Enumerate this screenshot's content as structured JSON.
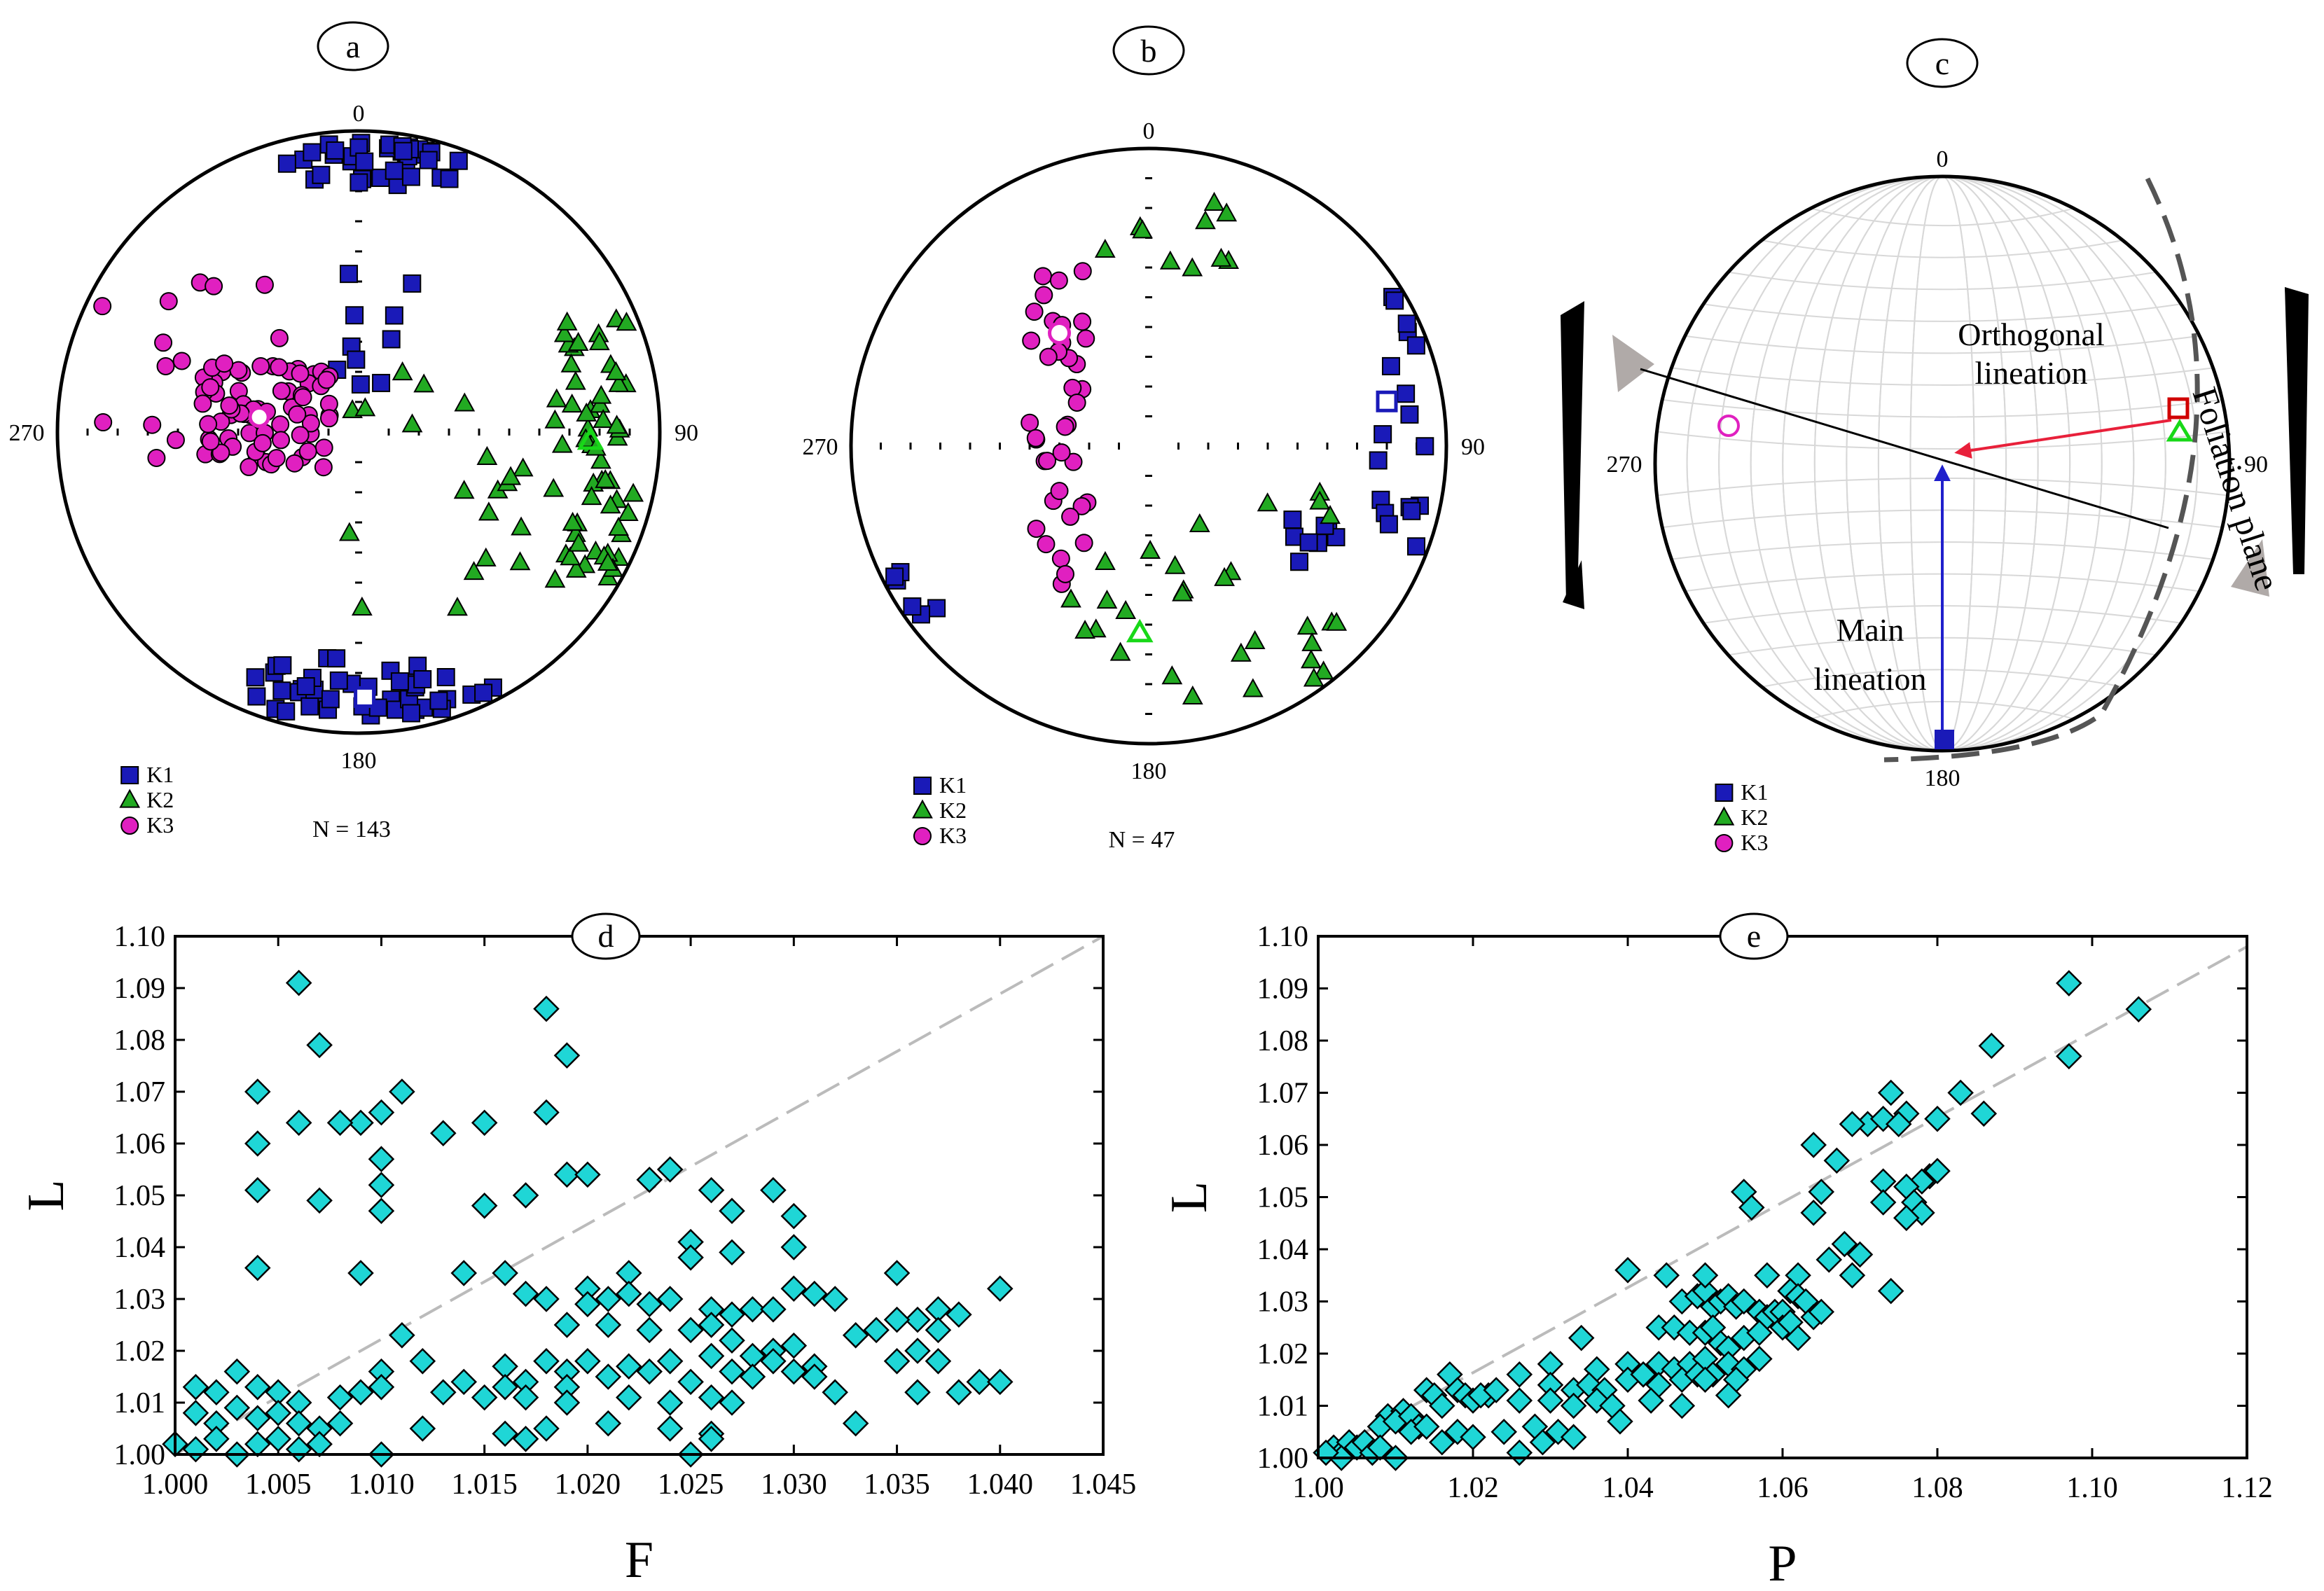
{
  "panels": [
    {
      "id": "a",
      "label": "a",
      "n_text": "N = 143",
      "dirs": [
        "0",
        "90",
        "180",
        "270"
      ]
    },
    {
      "id": "b",
      "label": "b",
      "n_text": "N = 47",
      "dirs": [
        "0",
        "90",
        "180",
        "270"
      ]
    },
    {
      "id": "c",
      "label": "c",
      "dirs": [
        "0",
        "90",
        "180",
        "270"
      ],
      "annotations": {
        "orthogonal": [
          "Orthogonal",
          "lineation"
        ],
        "main": [
          "Main",
          "lineation"
        ],
        "foliation": "Foliation plane"
      }
    }
  ],
  "legend": [
    {
      "key": "K1",
      "shape": "square",
      "color": "#1a1ab8"
    },
    {
      "key": "K2",
      "shape": "triangle",
      "color": "#22aa22"
    },
    {
      "key": "K3",
      "shape": "circle",
      "color": "#e020c0"
    }
  ],
  "colors": {
    "k1": "#1a1ab8",
    "k2": "#22aa22",
    "k3": "#e020c0",
    "scatter": "#1fd6d6",
    "orthogonal": "#e8203a",
    "main": "#2020cc",
    "foliation": "#555555"
  },
  "chart_data": [
    {
      "id": "d",
      "type": "scatter",
      "label": "d",
      "xlabel": "F",
      "ylabel": "L",
      "xlim": [
        1.0,
        1.045
      ],
      "ylim": [
        1.0,
        1.1
      ],
      "xticks": [
        "1.000",
        "1.005",
        "1.010",
        "1.015",
        "1.020",
        "1.025",
        "1.030",
        "1.035",
        "1.040",
        "1.045"
      ],
      "yticks": [
        "1.00",
        "1.01",
        "1.02",
        "1.03",
        "1.04",
        "1.05",
        "1.06",
        "1.07",
        "1.08",
        "1.09",
        "1.10"
      ],
      "reference_line": [
        [
          1.0,
          1.0
        ],
        [
          1.045,
          1.1
        ]
      ],
      "points": [
        [
          1.006,
          1.091
        ],
        [
          1.018,
          1.086
        ],
        [
          1.007,
          1.079
        ],
        [
          1.019,
          1.077
        ],
        [
          1.004,
          1.07
        ],
        [
          1.011,
          1.07
        ],
        [
          1.018,
          1.066
        ],
        [
          1.01,
          1.066
        ],
        [
          1.009,
          1.064
        ],
        [
          1.006,
          1.064
        ],
        [
          1.008,
          1.064
        ],
        [
          1.015,
          1.064
        ],
        [
          1.013,
          1.062
        ],
        [
          1.004,
          1.06
        ],
        [
          1.01,
          1.057
        ],
        [
          1.019,
          1.054
        ],
        [
          1.02,
          1.054
        ],
        [
          1.024,
          1.055
        ],
        [
          1.023,
          1.053
        ],
        [
          1.004,
          1.051
        ],
        [
          1.01,
          1.052
        ],
        [
          1.015,
          1.048
        ],
        [
          1.017,
          1.05
        ],
        [
          1.007,
          1.049
        ],
        [
          1.01,
          1.047
        ],
        [
          1.026,
          1.051
        ],
        [
          1.029,
          1.051
        ],
        [
          1.027,
          1.047
        ],
        [
          1.03,
          1.046
        ],
        [
          1.004,
          1.036
        ],
        [
          1.009,
          1.035
        ],
        [
          1.014,
          1.035
        ],
        [
          1.016,
          1.035
        ],
        [
          1.022,
          1.035
        ],
        [
          1.025,
          1.041
        ],
        [
          1.025,
          1.038
        ],
        [
          1.027,
          1.039
        ],
        [
          1.03,
          1.04
        ],
        [
          1.035,
          1.035
        ],
        [
          1.04,
          1.032
        ],
        [
          1.017,
          1.031
        ],
        [
          1.018,
          1.03
        ],
        [
          1.02,
          1.032
        ],
        [
          1.02,
          1.029
        ],
        [
          1.021,
          1.03
        ],
        [
          1.022,
          1.031
        ],
        [
          1.023,
          1.029
        ],
        [
          1.024,
          1.03
        ],
        [
          1.026,
          1.028
        ],
        [
          1.027,
          1.027
        ],
        [
          1.028,
          1.028
        ],
        [
          1.029,
          1.028
        ],
        [
          1.03,
          1.032
        ],
        [
          1.031,
          1.031
        ],
        [
          1.032,
          1.03
        ],
        [
          1.034,
          1.024
        ],
        [
          1.036,
          1.026
        ],
        [
          1.037,
          1.028
        ],
        [
          1.038,
          1.027
        ],
        [
          1.037,
          1.024
        ],
        [
          1.011,
          1.023
        ],
        [
          1.019,
          1.025
        ],
        [
          1.021,
          1.025
        ],
        [
          1.023,
          1.024
        ],
        [
          1.025,
          1.024
        ],
        [
          1.026,
          1.025
        ],
        [
          1.027,
          1.022
        ],
        [
          1.028,
          1.019
        ],
        [
          1.029,
          1.02
        ],
        [
          1.03,
          1.021
        ],
        [
          1.033,
          1.023
        ],
        [
          1.035,
          1.026
        ],
        [
          1.035,
          1.018
        ],
        [
          1.036,
          1.02
        ],
        [
          1.037,
          1.018
        ],
        [
          1.012,
          1.018
        ],
        [
          1.016,
          1.017
        ],
        [
          1.018,
          1.018
        ],
        [
          1.019,
          1.016
        ],
        [
          1.02,
          1.018
        ],
        [
          1.022,
          1.017
        ],
        [
          1.024,
          1.018
        ],
        [
          1.026,
          1.019
        ],
        [
          1.027,
          1.016
        ],
        [
          1.029,
          1.018
        ],
        [
          1.031,
          1.017
        ],
        [
          1.01,
          1.016
        ],
        [
          1.014,
          1.014
        ],
        [
          1.016,
          1.013
        ],
        [
          1.017,
          1.014
        ],
        [
          1.019,
          1.013
        ],
        [
          1.021,
          1.015
        ],
        [
          1.023,
          1.016
        ],
        [
          1.025,
          1.014
        ],
        [
          1.028,
          1.015
        ],
        [
          1.03,
          1.016
        ],
        [
          1.031,
          1.015
        ],
        [
          1.032,
          1.012
        ],
        [
          1.036,
          1.012
        ],
        [
          1.038,
          1.012
        ],
        [
          1.039,
          1.014
        ],
        [
          1.04,
          1.014
        ],
        [
          1.013,
          1.012
        ],
        [
          1.015,
          1.011
        ],
        [
          1.017,
          1.011
        ],
        [
          1.019,
          1.01
        ],
        [
          1.022,
          1.011
        ],
        [
          1.024,
          1.01
        ],
        [
          1.026,
          1.011
        ],
        [
          1.027,
          1.01
        ],
        [
          1.001,
          1.013
        ],
        [
          1.002,
          1.012
        ],
        [
          1.003,
          1.016
        ],
        [
          1.004,
          1.013
        ],
        [
          1.005,
          1.012
        ],
        [
          1.006,
          1.01
        ],
        [
          1.008,
          1.011
        ],
        [
          1.009,
          1.012
        ],
        [
          1.01,
          1.013
        ],
        [
          1.001,
          1.008
        ],
        [
          1.002,
          1.006
        ],
        [
          1.003,
          1.009
        ],
        [
          1.004,
          1.007
        ],
        [
          1.005,
          1.008
        ],
        [
          1.006,
          1.006
        ],
        [
          1.007,
          1.005
        ],
        [
          1.008,
          1.006
        ],
        [
          1.012,
          1.005
        ],
        [
          1.016,
          1.004
        ],
        [
          1.018,
          1.005
        ],
        [
          1.021,
          1.006
        ],
        [
          1.024,
          1.005
        ],
        [
          1.026,
          1.004
        ],
        [
          1.033,
          1.006
        ],
        [
          1.0,
          1.002
        ],
        [
          1.001,
          1.001
        ],
        [
          1.002,
          1.003
        ],
        [
          1.003,
          1.0
        ],
        [
          1.004,
          1.002
        ],
        [
          1.005,
          1.003
        ],
        [
          1.006,
          1.001
        ],
        [
          1.007,
          1.002
        ],
        [
          1.01,
          1.0
        ],
        [
          1.017,
          1.003
        ],
        [
          1.025,
          1.0
        ],
        [
          1.026,
          1.003
        ]
      ]
    },
    {
      "id": "e",
      "type": "scatter",
      "label": "e",
      "xlabel": "P",
      "ylabel": "L",
      "xlim": [
        1.0,
        1.12
      ],
      "ylim": [
        1.0,
        1.1
      ],
      "xticks": [
        "1.00",
        "1.02",
        "1.04",
        "1.06",
        "1.08",
        "1.10",
        "1.12"
      ],
      "yticks": [
        "1.00",
        "1.01",
        "1.02",
        "1.03",
        "1.04",
        "1.05",
        "1.06",
        "1.07",
        "1.08",
        "1.09",
        "1.10"
      ],
      "reference_line": [
        [
          1.0,
          1.0
        ],
        [
          1.12,
          1.098
        ]
      ],
      "points": [
        [
          1.097,
          1.091
        ],
        [
          1.106,
          1.086
        ],
        [
          1.087,
          1.079
        ],
        [
          1.097,
          1.077
        ],
        [
          1.074,
          1.07
        ],
        [
          1.083,
          1.07
        ],
        [
          1.086,
          1.066
        ],
        [
          1.08,
          1.065
        ],
        [
          1.076,
          1.066
        ],
        [
          1.071,
          1.064
        ],
        [
          1.073,
          1.065
        ],
        [
          1.075,
          1.064
        ],
        [
          1.069,
          1.064
        ],
        [
          1.064,
          1.06
        ],
        [
          1.067,
          1.057
        ],
        [
          1.079,
          1.054
        ],
        [
          1.08,
          1.055
        ],
        [
          1.078,
          1.053
        ],
        [
          1.073,
          1.053
        ],
        [
          1.076,
          1.052
        ],
        [
          1.055,
          1.051
        ],
        [
          1.077,
          1.049
        ],
        [
          1.056,
          1.048
        ],
        [
          1.078,
          1.047
        ],
        [
          1.065,
          1.051
        ],
        [
          1.064,
          1.047
        ],
        [
          1.073,
          1.049
        ],
        [
          1.076,
          1.046
        ],
        [
          1.04,
          1.036
        ],
        [
          1.045,
          1.035
        ],
        [
          1.058,
          1.035
        ],
        [
          1.062,
          1.035
        ],
        [
          1.068,
          1.041
        ],
        [
          1.066,
          1.038
        ],
        [
          1.07,
          1.039
        ],
        [
          1.069,
          1.035
        ],
        [
          1.074,
          1.032
        ],
        [
          1.047,
          1.03
        ],
        [
          1.049,
          1.031
        ],
        [
          1.05,
          1.032
        ],
        [
          1.051,
          1.029
        ],
        [
          1.052,
          1.03
        ],
        [
          1.053,
          1.031
        ],
        [
          1.054,
          1.029
        ],
        [
          1.055,
          1.03
        ],
        [
          1.057,
          1.028
        ],
        [
          1.058,
          1.027
        ],
        [
          1.059,
          1.028
        ],
        [
          1.06,
          1.028
        ],
        [
          1.061,
          1.032
        ],
        [
          1.062,
          1.031
        ],
        [
          1.063,
          1.03
        ],
        [
          1.064,
          1.027
        ],
        [
          1.065,
          1.028
        ],
        [
          1.05,
          1.035
        ],
        [
          1.034,
          1.023
        ],
        [
          1.044,
          1.025
        ],
        [
          1.046,
          1.025
        ],
        [
          1.048,
          1.024
        ],
        [
          1.05,
          1.024
        ],
        [
          1.051,
          1.025
        ],
        [
          1.052,
          1.022
        ],
        [
          1.053,
          1.021
        ],
        [
          1.055,
          1.023
        ],
        [
          1.057,
          1.024
        ],
        [
          1.06,
          1.025
        ],
        [
          1.061,
          1.026
        ],
        [
          1.062,
          1.023
        ],
        [
          1.03,
          1.018
        ],
        [
          1.036,
          1.017
        ],
        [
          1.04,
          1.018
        ],
        [
          1.042,
          1.016
        ],
        [
          1.044,
          1.018
        ],
        [
          1.046,
          1.017
        ],
        [
          1.048,
          1.018
        ],
        [
          1.05,
          1.019
        ],
        [
          1.051,
          1.016
        ],
        [
          1.053,
          1.018
        ],
        [
          1.055,
          1.017
        ],
        [
          1.057,
          1.019
        ],
        [
          1.026,
          1.016
        ],
        [
          1.03,
          1.014
        ],
        [
          1.033,
          1.013
        ],
        [
          1.035,
          1.014
        ],
        [
          1.037,
          1.013
        ],
        [
          1.04,
          1.015
        ],
        [
          1.042,
          1.016
        ],
        [
          1.044,
          1.014
        ],
        [
          1.047,
          1.015
        ],
        [
          1.049,
          1.016
        ],
        [
          1.05,
          1.015
        ],
        [
          1.054,
          1.015
        ],
        [
          1.022,
          1.012
        ],
        [
          1.026,
          1.011
        ],
        [
          1.03,
          1.011
        ],
        [
          1.033,
          1.01
        ],
        [
          1.036,
          1.011
        ],
        [
          1.038,
          1.01
        ],
        [
          1.043,
          1.011
        ],
        [
          1.047,
          1.01
        ],
        [
          1.053,
          1.012
        ],
        [
          1.014,
          1.013
        ],
        [
          1.015,
          1.012
        ],
        [
          1.017,
          1.016
        ],
        [
          1.018,
          1.013
        ],
        [
          1.019,
          1.012
        ],
        [
          1.016,
          1.01
        ],
        [
          1.02,
          1.011
        ],
        [
          1.021,
          1.012
        ],
        [
          1.023,
          1.013
        ],
        [
          1.009,
          1.008
        ],
        [
          1.008,
          1.006
        ],
        [
          1.011,
          1.009
        ],
        [
          1.01,
          1.007
        ],
        [
          1.012,
          1.008
        ],
        [
          1.013,
          1.006
        ],
        [
          1.012,
          1.005
        ],
        [
          1.014,
          1.006
        ],
        [
          1.018,
          1.005
        ],
        [
          1.02,
          1.004
        ],
        [
          1.024,
          1.005
        ],
        [
          1.028,
          1.006
        ],
        [
          1.031,
          1.005
        ],
        [
          1.033,
          1.004
        ],
        [
          1.039,
          1.007
        ],
        [
          1.002,
          1.002
        ],
        [
          1.003,
          1.001
        ],
        [
          1.004,
          1.003
        ],
        [
          1.003,
          1.0
        ],
        [
          1.005,
          1.002
        ],
        [
          1.006,
          1.003
        ],
        [
          1.007,
          1.001
        ],
        [
          1.008,
          1.002
        ],
        [
          1.01,
          1.0
        ],
        [
          1.016,
          1.003
        ],
        [
          1.026,
          1.001
        ],
        [
          1.029,
          1.003
        ],
        [
          1.001,
          1.001
        ]
      ]
    }
  ]
}
